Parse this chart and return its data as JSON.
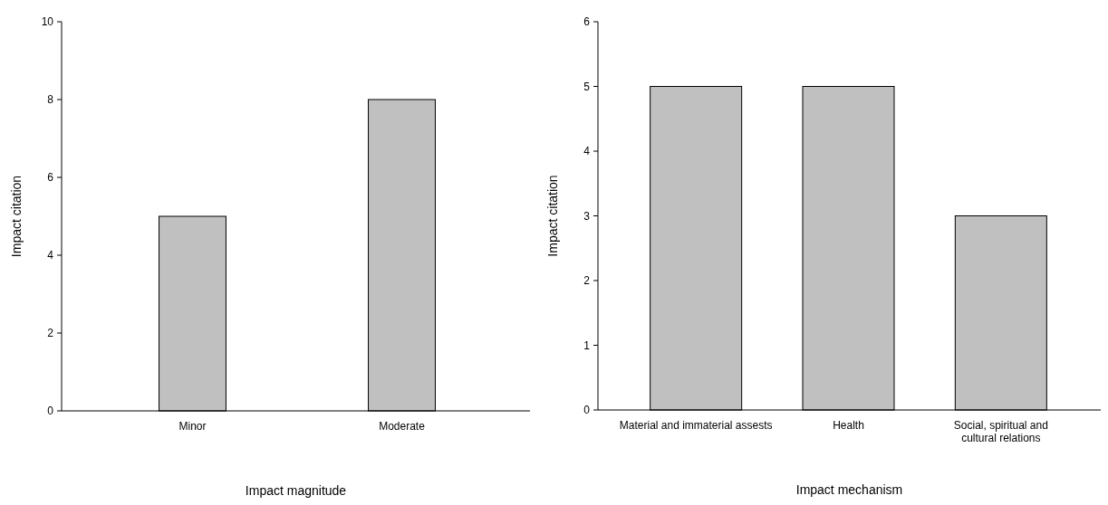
{
  "chart_data": [
    {
      "type": "bar",
      "categories": [
        "Minor",
        "Moderate"
      ],
      "values": [
        5,
        8
      ],
      "color": "#c0c0c0",
      "xlabel": "Impact magnitude",
      "ylabel": "Impact citation",
      "ylim": [
        0,
        10
      ],
      "yticks": [
        0,
        2,
        4,
        6,
        8,
        10
      ]
    },
    {
      "type": "bar",
      "categories": [
        "Material and immaterial assests",
        "Health",
        "Social, spiritual and cultural relations"
      ],
      "values": [
        5,
        5,
        3
      ],
      "color": "#c0c0c0",
      "xlabel": "Impact mechanism",
      "ylabel": "Impact citation",
      "ylim": [
        0,
        6
      ],
      "yticks": [
        0,
        1,
        2,
        3,
        4,
        5,
        6
      ]
    }
  ]
}
